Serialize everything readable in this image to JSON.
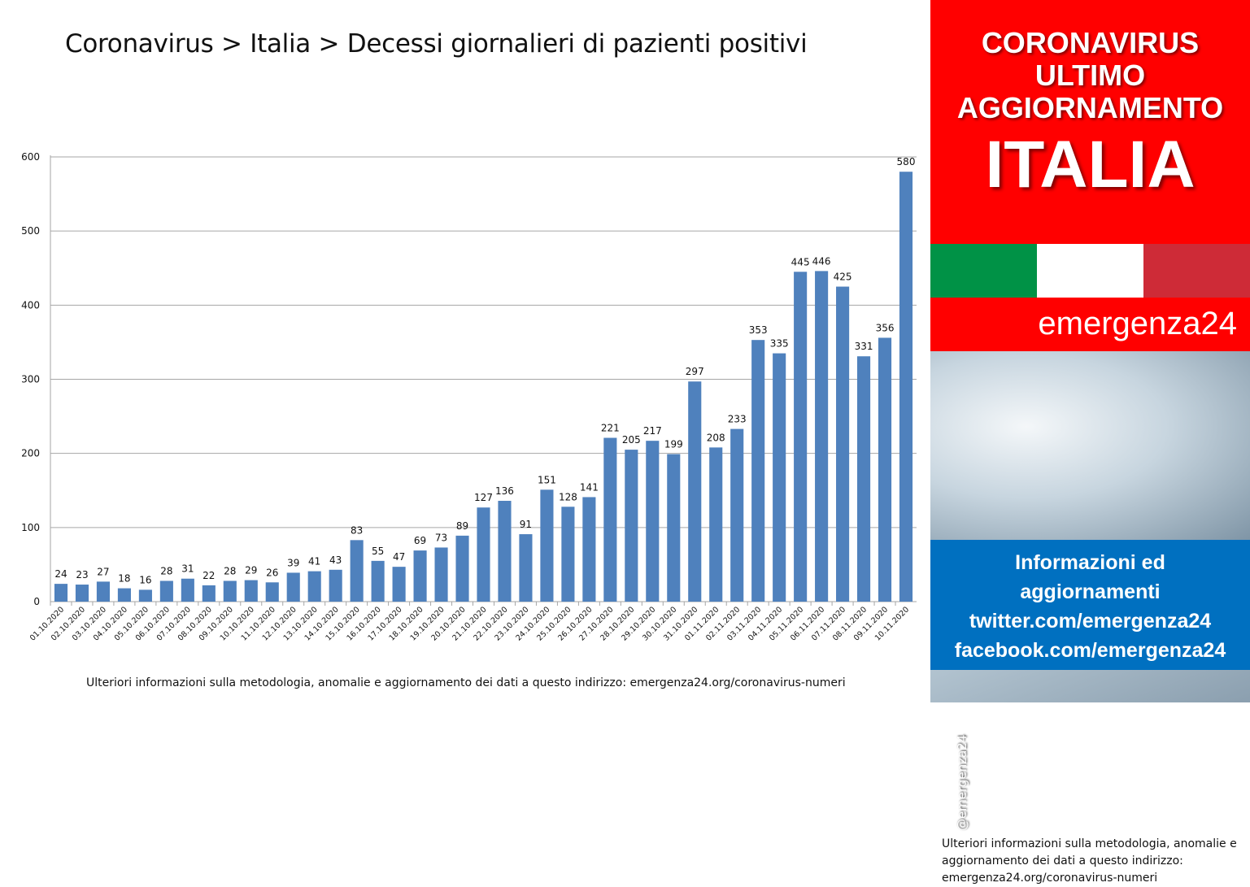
{
  "title": "Coronavirus > Italia > Decessi giornalieri di pazienti positivi",
  "footnote": "Ulteriori informazioni sulla metodologia, anomalie e aggiornamento dei dati a questo indirizzo: emergenza24.org/coronavirus-numeri",
  "sidebar": {
    "headline": [
      "CORONAVIRUS",
      "ULTIMO",
      "AGGIORNAMENTO",
      "ITALIA"
    ],
    "brand": "emergenza24",
    "handle": "@emergenza24",
    "info": "Ulteriori informazioni sulla metodologia, anomalie e aggiornamento dei dati a questo indirizzo: emergenza24.org/coronavirus-numeri",
    "links": [
      "Informazioni ed",
      "aggiornamenti",
      "twitter.com/emergenza24",
      "facebook.com/emergenza24"
    ],
    "colors": {
      "red": "#ff0000",
      "flag_green": "#009246",
      "flag_white": "#ffffff",
      "flag_red": "#ce2b37",
      "blue": "#0070c0"
    }
  },
  "chart_data": {
    "type": "bar",
    "title": "",
    "xlabel": "",
    "ylabel": "",
    "ylim": [
      0,
      600
    ],
    "yticks": [
      0,
      100,
      200,
      300,
      400,
      500,
      600
    ],
    "grid": true,
    "legend": "none",
    "bar_color": "#4f81bd",
    "categories": [
      "01.10.2020",
      "02.10.2020",
      "03.10.2020",
      "04.10.2020",
      "05.10.2020",
      "06.10.2020",
      "07.10.2020",
      "08.10.2020",
      "09.10.2020",
      "10.10.2020",
      "11.10.2020",
      "12.10.2020",
      "13.10.2020",
      "14.10.2020",
      "15.10.2020",
      "16.10.2020",
      "17.10.2020",
      "18.10.2020",
      "19.10.2020",
      "20.10.2020",
      "21.10.2020",
      "22.10.2020",
      "23.10.2020",
      "24.10.2020",
      "25.10.2020",
      "26.10.2020",
      "27.10.2020",
      "28.10.2020",
      "29.10.2020",
      "30.10.2020",
      "31.10.2020",
      "01.11.2020",
      "02.11.2020",
      "03.11.2020",
      "04.11.2020",
      "05.11.2020",
      "06.11.2020",
      "07.11.2020",
      "08.11.2020",
      "09.11.2020",
      "10.11.2020"
    ],
    "values": [
      24,
      23,
      27,
      18,
      16,
      28,
      31,
      22,
      28,
      29,
      26,
      39,
      41,
      43,
      83,
      55,
      47,
      69,
      73,
      89,
      127,
      136,
      91,
      151,
      128,
      141,
      221,
      205,
      217,
      199,
      297,
      208,
      233,
      353,
      335,
      445,
      446,
      425,
      331,
      356,
      580
    ]
  }
}
